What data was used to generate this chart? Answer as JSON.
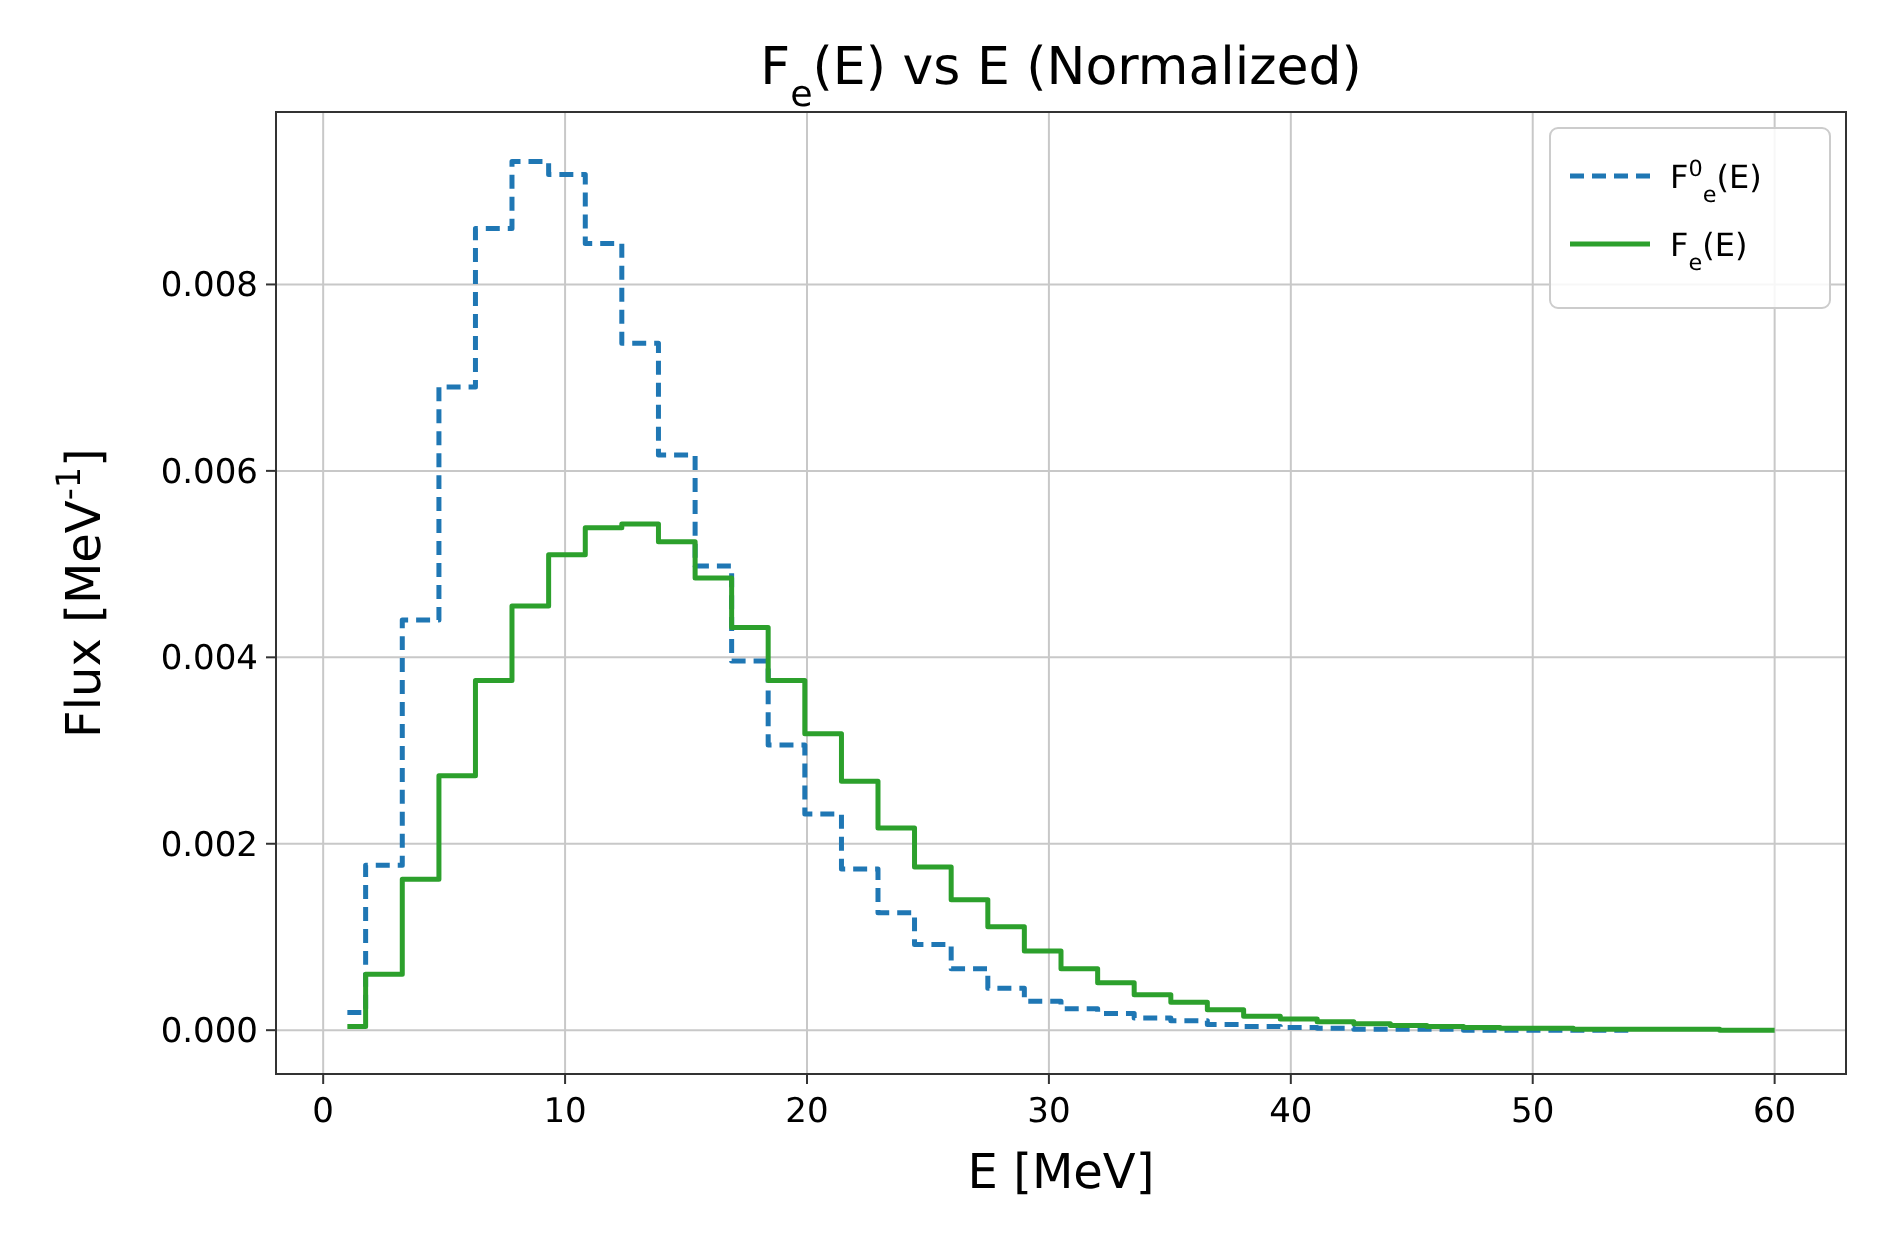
{
  "chart_data": {
    "type": "step",
    "title": "F$_{e}$(E) vs E (Normalized)",
    "xlabel": "E [MeV]",
    "ylabel": "Flux [MeV$^{-1}$]",
    "x": [
      1,
      2.51,
      4.03,
      5.54,
      7.05,
      8.56,
      10.08,
      11.59,
      13.1,
      14.62,
      16.13,
      17.64,
      19.15,
      20.67,
      22.18,
      23.69,
      25.2,
      26.72,
      28.23,
      29.74,
      31.26,
      32.77,
      34.28,
      35.8,
      37.3,
      38.8,
      40.33,
      41.85,
      43.36,
      44.87,
      46.38,
      47.9,
      49.41,
      50.92,
      52.44,
      53.95,
      55.46,
      56.97,
      58.49,
      60
    ],
    "series": [
      {
        "name": "F$^{0}$$_{e}$(E)",
        "color": "#1f77b4",
        "line_style": "dashed",
        "values": [
          0.00019,
          0.00177,
          0.0044,
          0.0069,
          0.0086,
          0.00932,
          0.00918,
          0.00844,
          0.00737,
          0.00617,
          0.00498,
          0.00396,
          0.00306,
          0.00232,
          0.00173,
          0.00126,
          0.00092,
          0.00066,
          0.00045,
          0.00031,
          0.00023,
          0.00018,
          0.00013,
          0.0001,
          6e-05,
          4e-05,
          3e-05,
          2e-05,
          1e-05,
          1e-05,
          1e-05,
          0,
          0,
          0,
          0,
          0,
          null,
          null,
          null,
          null
        ]
      },
      {
        "name": "F$_{e}$(E)",
        "color": "#2ca02c",
        "line_style": "solid",
        "values": [
          4e-05,
          0.0006,
          0.00162,
          0.00273,
          0.00375,
          0.00455,
          0.0051,
          0.00539,
          0.00543,
          0.00524,
          0.00485,
          0.00432,
          0.00375,
          0.00318,
          0.00267,
          0.00217,
          0.00175,
          0.0014,
          0.00111,
          0.00085,
          0.00066,
          0.00051,
          0.00038,
          0.0003,
          0.00022,
          0.00015,
          0.00012,
          9e-05,
          7e-05,
          5e-05,
          4e-05,
          3e-05,
          2e-05,
          2e-05,
          1e-05,
          1e-05,
          1e-05,
          1e-05,
          0,
          0
        ]
      }
    ],
    "xlim": [
      -1.95,
      62.95
    ],
    "ylim": [
      -0.00047,
      0.00985
    ],
    "xticks": [
      0,
      10,
      20,
      30,
      40,
      50,
      60
    ],
    "yticks": [
      {
        "value": 0,
        "label": "0.000"
      },
      {
        "value": 0.002,
        "label": "0.002"
      },
      {
        "value": 0.004,
        "label": "0.004"
      },
      {
        "value": 0.006,
        "label": "0.006"
      },
      {
        "value": 0.008,
        "label": "0.008"
      }
    ],
    "grid": true,
    "legend": "top right"
  }
}
